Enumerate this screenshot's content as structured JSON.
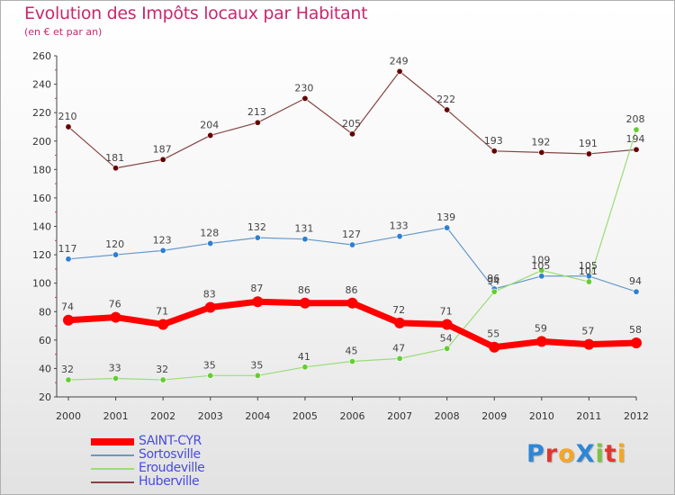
{
  "title": "Evolution des Impôts locaux par Habitant",
  "subtitle": "(en € et par an)",
  "logo": {
    "letters": [
      {
        "ch": "P",
        "color": "#2e86d6"
      },
      {
        "ch": "r",
        "color": "#e0372f"
      },
      {
        "ch": "o",
        "color": "#f5a623"
      },
      {
        "ch": "X",
        "color": "#2e86d6"
      },
      {
        "ch": "i",
        "color": "#7cc243"
      },
      {
        "ch": "t",
        "color": "#e0372f"
      },
      {
        "ch": "i",
        "color": "#f5a623"
      }
    ]
  },
  "chart_data": {
    "type": "line",
    "title": "Evolution des Impôts locaux par Habitant",
    "subtitle": "(en € et par an)",
    "xlabel": "",
    "ylabel": "",
    "x": [
      "2000",
      "2001",
      "2002",
      "2003",
      "2004",
      "2005",
      "2006",
      "2007",
      "2008",
      "2009",
      "2010",
      "2011",
      "2012"
    ],
    "ylim": [
      20,
      260
    ],
    "yticks": [
      20,
      40,
      60,
      80,
      100,
      120,
      140,
      160,
      180,
      200,
      220,
      240,
      260
    ],
    "grid": false,
    "legend_position": "bottom-left",
    "series": [
      {
        "name": "SAINT-CYR",
        "color": "#ff0000",
        "point_color": "#ff0000",
        "width": 7,
        "values": [
          74,
          76,
          71,
          83,
          87,
          86,
          86,
          72,
          71,
          55,
          59,
          57,
          58
        ]
      },
      {
        "name": "Sortosville",
        "color": "#6699cc",
        "point_color": "#2f7fd1",
        "width": 1.2,
        "values": [
          117,
          120,
          123,
          128,
          132,
          131,
          127,
          133,
          139,
          96,
          105,
          105,
          94
        ]
      },
      {
        "name": "Eroudeville",
        "color": "#99dd77",
        "point_color": "#66cc33",
        "width": 1.2,
        "values": [
          32,
          33,
          32,
          35,
          35,
          41,
          45,
          47,
          54,
          94,
          109,
          101,
          208
        ]
      },
      {
        "name": "Huberville",
        "color": "#884444",
        "point_color": "#660000",
        "width": 1.2,
        "values": [
          210,
          181,
          187,
          204,
          213,
          230,
          205,
          249,
          222,
          193,
          192,
          191,
          194
        ]
      }
    ]
  }
}
